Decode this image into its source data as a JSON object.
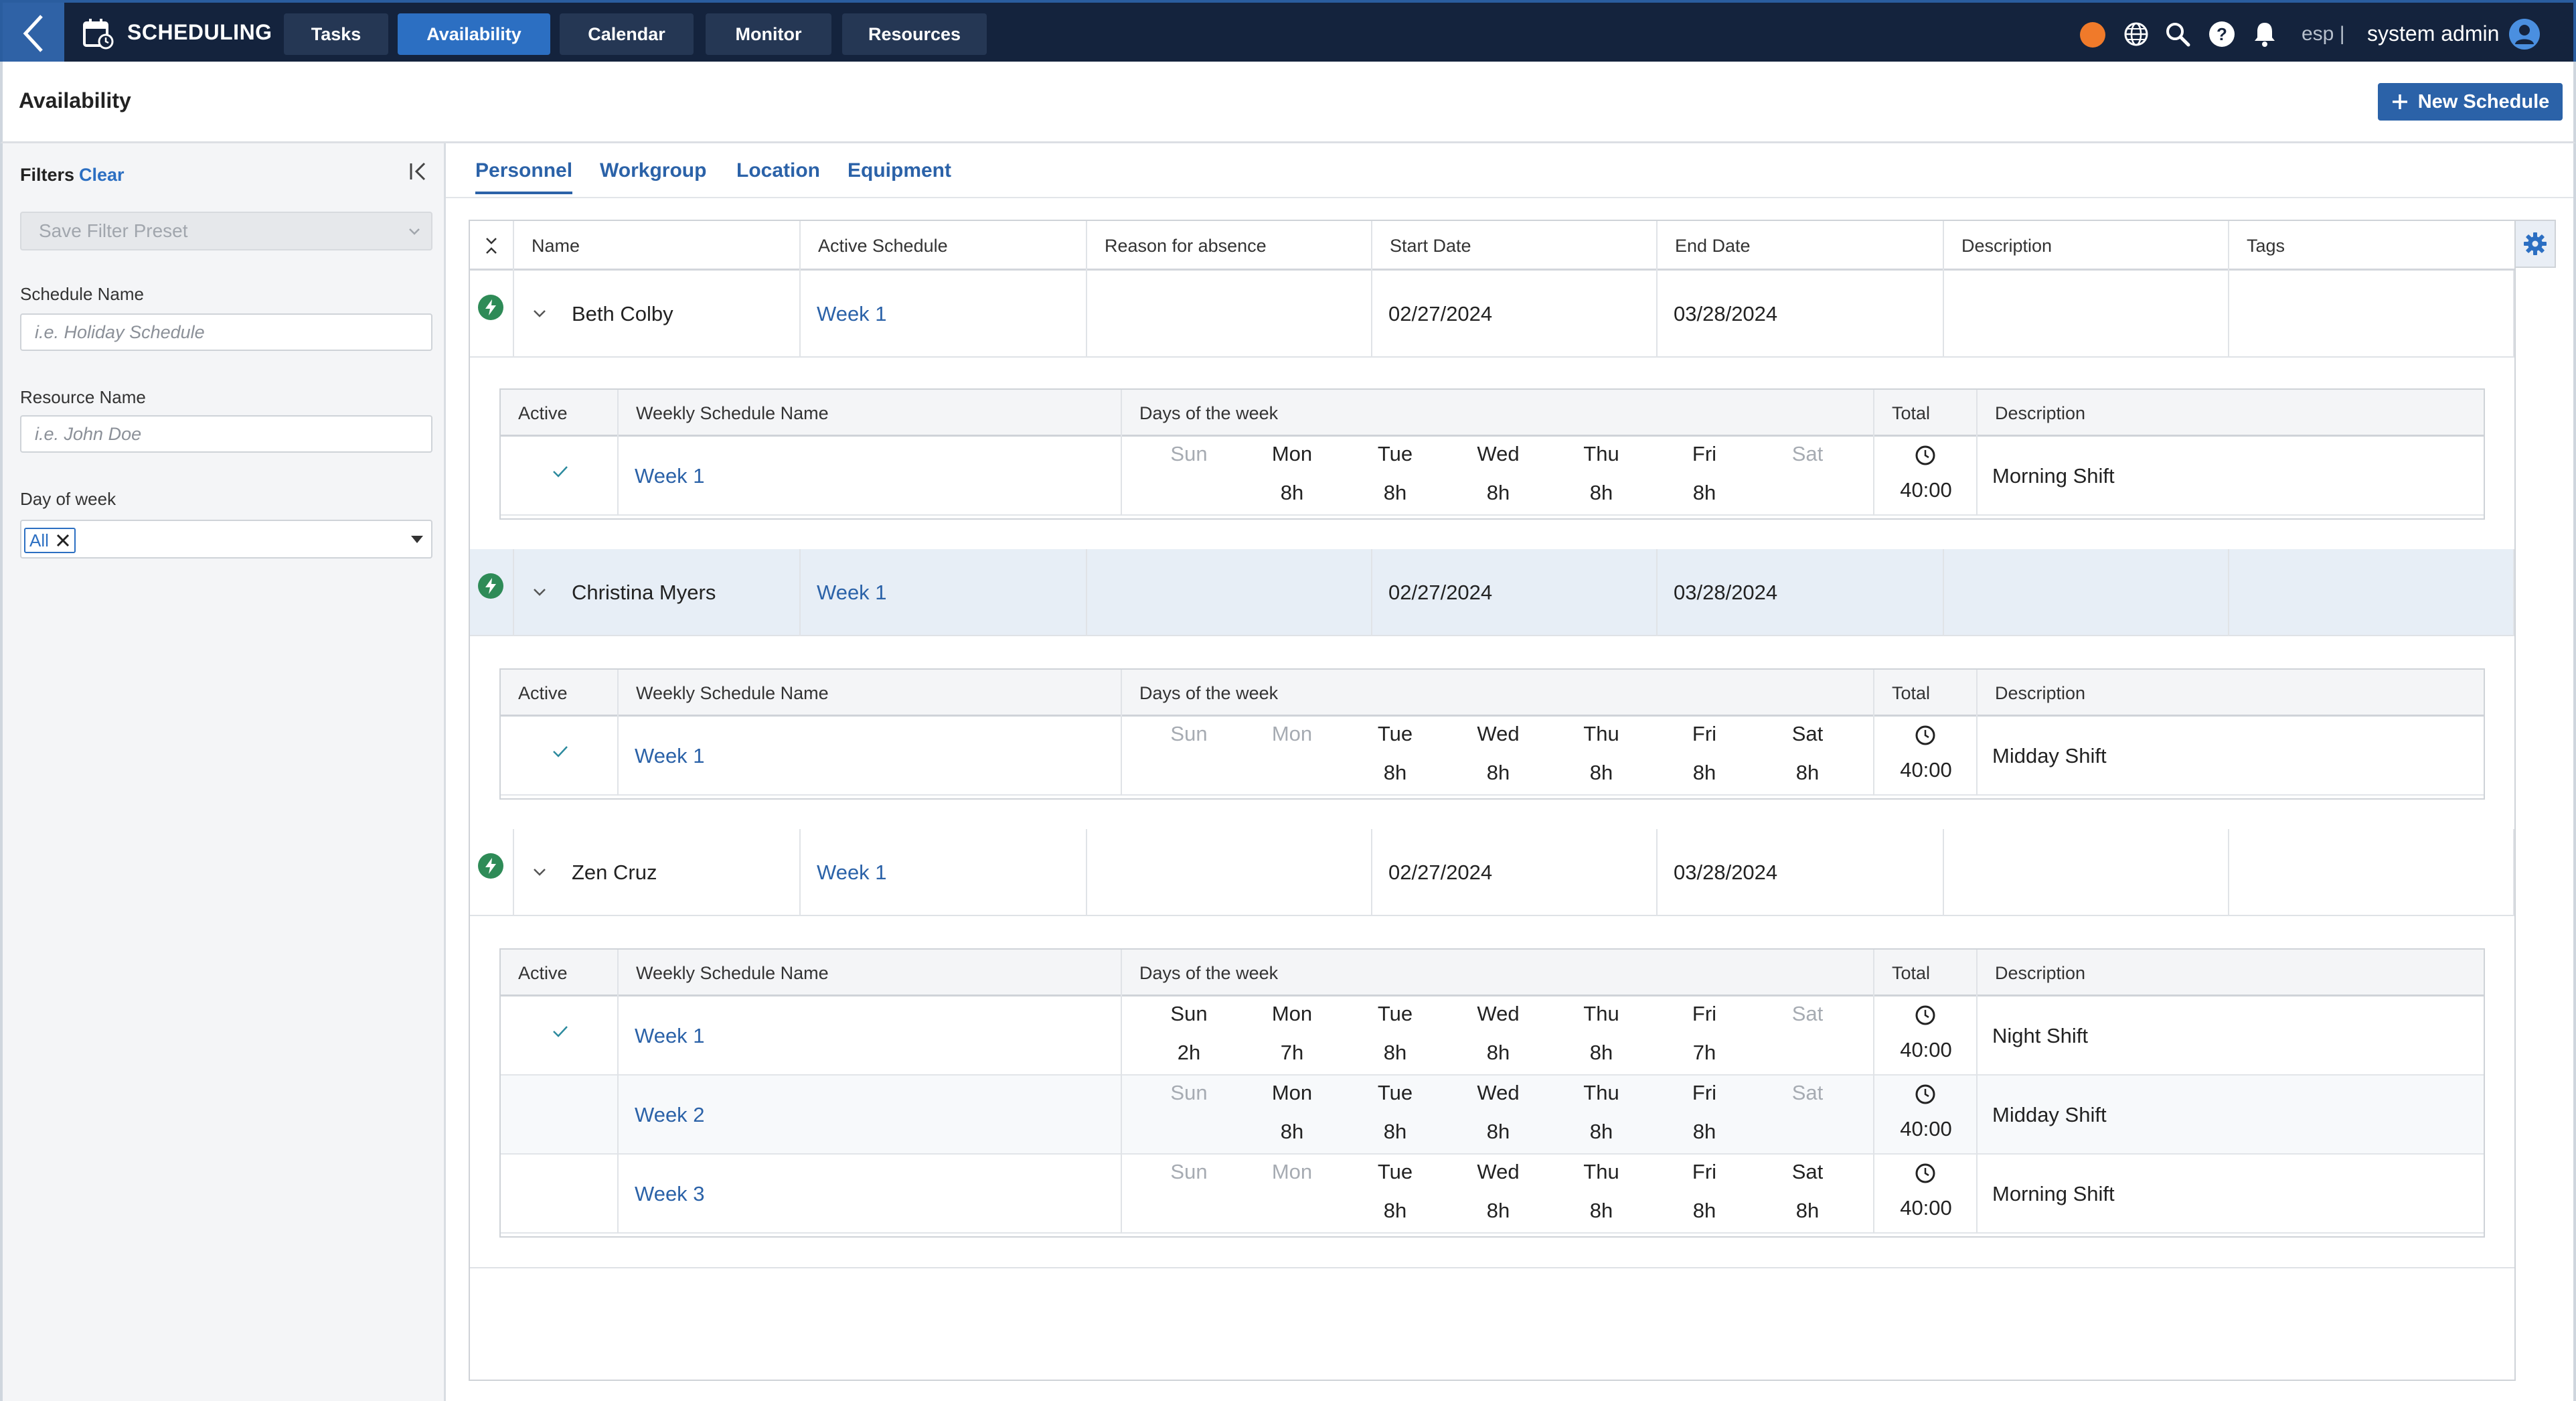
{
  "app": {
    "title": "SCHEDULING",
    "nav": [
      "Tasks",
      "Availability",
      "Calendar",
      "Monitor",
      "Resources"
    ],
    "active_nav": "Availability",
    "lang": "esp |",
    "user": "system admin",
    "status_color": "#f07a2a"
  },
  "page": {
    "title": "Availability",
    "new_button": "New Schedule"
  },
  "filters": {
    "title": "Filters",
    "clear": "Clear",
    "preset_placeholder": "Save Filter Preset",
    "schedule_name_label": "Schedule Name",
    "schedule_name_placeholder": "i.e. Holiday Schedule",
    "resource_name_label": "Resource Name",
    "resource_name_placeholder": "i.e. John Doe",
    "day_label": "Day of week",
    "day_value": "All"
  },
  "tabs": [
    "Personnel",
    "Workgroup",
    "Location",
    "Equipment"
  ],
  "active_tab": "Personnel",
  "columns": [
    "Name",
    "Active Schedule",
    "Reason for absence",
    "Start Date",
    "End Date",
    "Description",
    "Tags"
  ],
  "sub_columns": [
    "Active",
    "Weekly Schedule Name",
    "Days of the week",
    "Total",
    "Description"
  ],
  "day_names": [
    "Sun",
    "Mon",
    "Tue",
    "Wed",
    "Thu",
    "Fri",
    "Sat"
  ],
  "people": [
    {
      "name": "Beth Colby",
      "active_schedule": "Week 1",
      "reason": "",
      "start": "02/27/2024",
      "end": "03/28/2024",
      "description": "",
      "tags": "",
      "selected": false,
      "weeks": [
        {
          "active": true,
          "name": "Week 1",
          "hours": [
            "",
            "8h",
            "8h",
            "8h",
            "8h",
            "8h",
            ""
          ],
          "total": "40:00",
          "description": "Morning Shift"
        }
      ]
    },
    {
      "name": "Christina Myers",
      "active_schedule": "Week 1",
      "reason": "",
      "start": "02/27/2024",
      "end": "03/28/2024",
      "description": "",
      "tags": "",
      "selected": true,
      "weeks": [
        {
          "active": true,
          "name": "Week 1",
          "hours": [
            "",
            "",
            "8h",
            "8h",
            "8h",
            "8h",
            "8h"
          ],
          "total": "40:00",
          "description": "Midday Shift"
        }
      ]
    },
    {
      "name": "Zen Cruz",
      "active_schedule": "Week 1",
      "reason": "",
      "start": "02/27/2024",
      "end": "03/28/2024",
      "description": "",
      "tags": "",
      "selected": false,
      "weeks": [
        {
          "active": true,
          "name": "Week 1",
          "hours": [
            "2h",
            "7h",
            "8h",
            "8h",
            "8h",
            "7h",
            ""
          ],
          "total": "40:00",
          "description": "Night Shift"
        },
        {
          "active": false,
          "name": "Week 2",
          "hours": [
            "",
            "8h",
            "8h",
            "8h",
            "8h",
            "8h",
            ""
          ],
          "total": "40:00",
          "description": "Midday Shift"
        },
        {
          "active": false,
          "name": "Week 3",
          "hours": [
            "",
            "",
            "8h",
            "8h",
            "8h",
            "8h",
            "8h"
          ],
          "total": "40:00",
          "description": "Morning Shift"
        }
      ]
    }
  ]
}
